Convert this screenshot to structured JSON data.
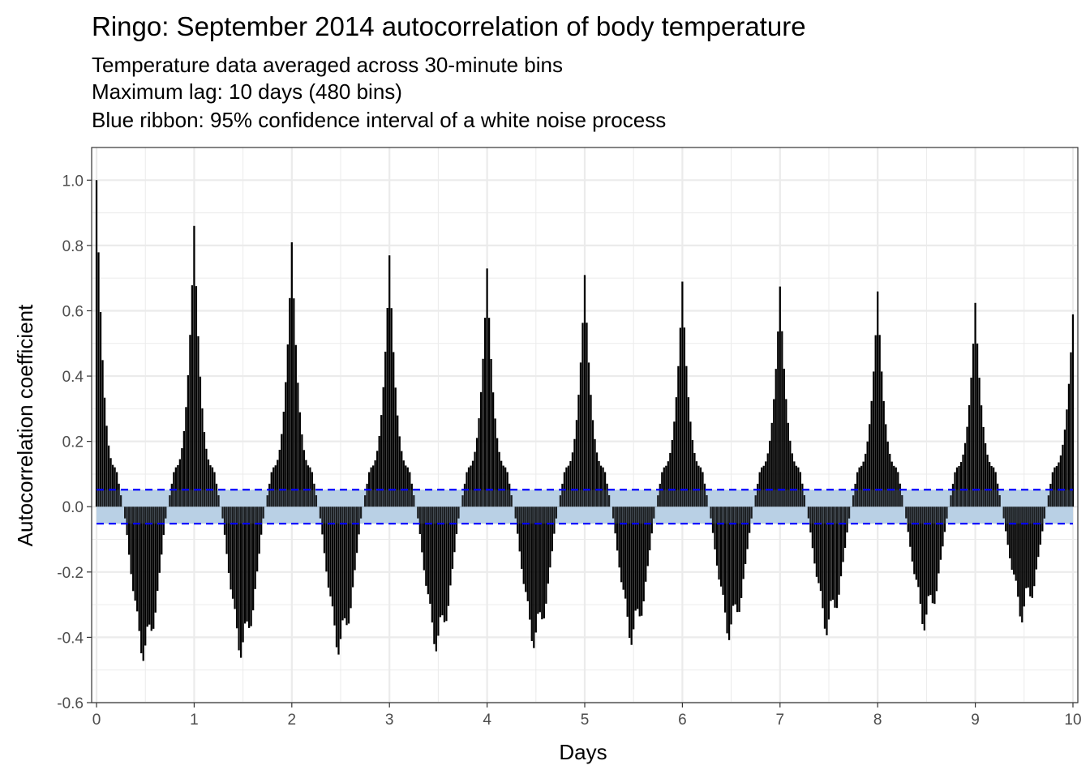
{
  "chart_data": {
    "type": "bar",
    "title": "Ringo: September 2014 autocorrelation of body temperature",
    "subtitle": [
      "Temperature data averaged across 30-minute bins",
      "Maximum lag: 10 days (480 bins)",
      "Blue ribbon: 95% confidence interval of a white noise process"
    ],
    "xlabel": "Days",
    "ylabel": "Autocorrelation coefficient",
    "xlim": [
      -0.05,
      10.05
    ],
    "ylim": [
      -0.6,
      1.1
    ],
    "x_ticks": [
      0,
      1,
      2,
      3,
      4,
      5,
      6,
      7,
      8,
      9,
      10
    ],
    "x_tick_labels": [
      "0",
      "1",
      "2",
      "3",
      "4",
      "5",
      "6",
      "7",
      "8",
      "9",
      "10"
    ],
    "y_ticks": [
      1.0,
      0.8,
      0.6,
      0.4,
      0.2,
      0.0,
      -0.2,
      -0.4,
      -0.6
    ],
    "y_tick_labels": [
      "1.0",
      "0.8",
      "0.6",
      "0.4",
      "0.2",
      "0.0",
      "-0.2",
      "-0.4",
      "-0.6"
    ],
    "grid": true,
    "bin_width_days": 0.020833,
    "lag_bins": 480,
    "daily_peaks": [
      {
        "day": 0,
        "acf": 1.0
      },
      {
        "day": 1,
        "acf": 0.86
      },
      {
        "day": 2,
        "acf": 0.81
      },
      {
        "day": 3,
        "acf": 0.77
      },
      {
        "day": 4,
        "acf": 0.73
      },
      {
        "day": 5,
        "acf": 0.71
      },
      {
        "day": 6,
        "acf": 0.69
      },
      {
        "day": 7,
        "acf": 0.675
      },
      {
        "day": 8,
        "acf": 0.66
      },
      {
        "day": 9,
        "acf": 0.625
      },
      {
        "day": 10,
        "acf": 0.59
      }
    ],
    "daily_troughs": [
      {
        "day": 0.5,
        "acf": -0.425
      },
      {
        "day": 1.5,
        "acf": -0.415
      },
      {
        "day": 2.5,
        "acf": -0.405
      },
      {
        "day": 3.5,
        "acf": -0.395
      },
      {
        "day": 4.5,
        "acf": -0.385
      },
      {
        "day": 5.5,
        "acf": -0.375
      },
      {
        "day": 6.5,
        "acf": -0.36
      },
      {
        "day": 7.5,
        "acf": -0.345
      },
      {
        "day": 8.5,
        "acf": -0.33
      },
      {
        "day": 9.5,
        "acf": -0.305
      }
    ],
    "confidence_band": {
      "lower": -0.052,
      "upper": 0.052
    },
    "colors": {
      "bars": "#000000",
      "ribbon": "#b9d0e6",
      "ribbon_lines": "#0000ff",
      "grid": "#ebebeb",
      "panel_border": "#333333"
    }
  }
}
